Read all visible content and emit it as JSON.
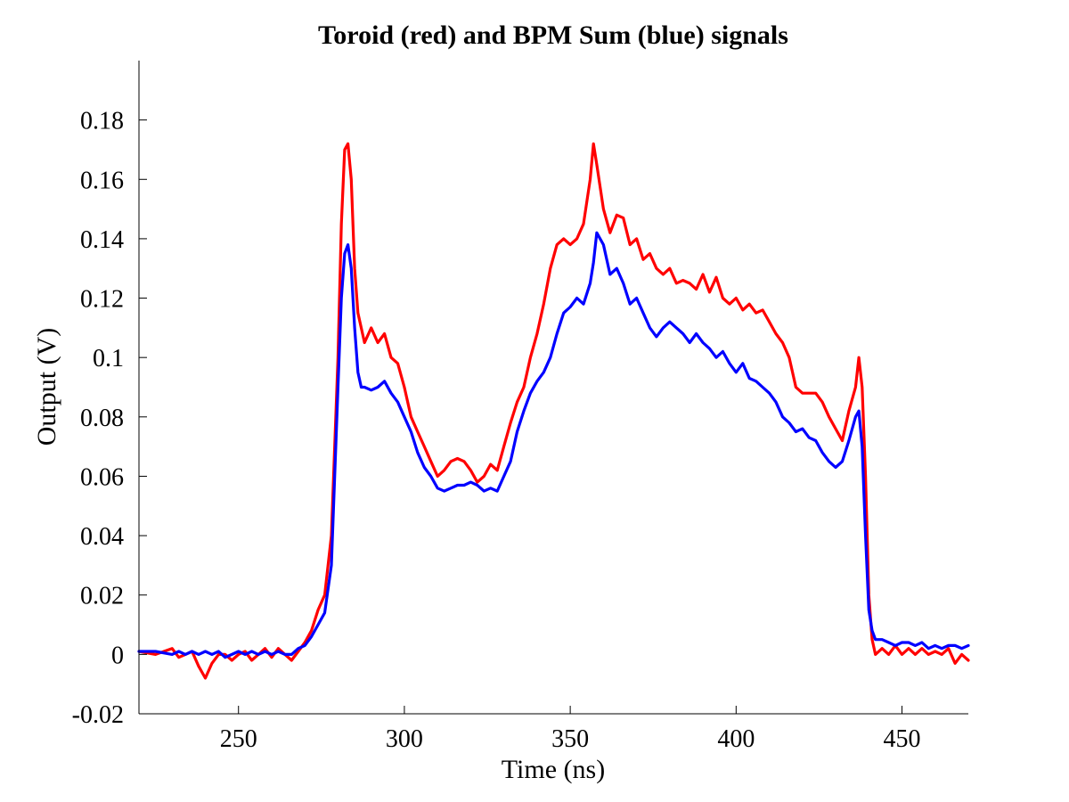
{
  "chart_data": {
    "type": "line",
    "title": "Toroid (red) and BPM Sum (blue) signals",
    "xlabel": "Time (ns)",
    "ylabel": "Output (V)",
    "xlim": [
      220,
      470
    ],
    "ylim": [
      -0.02,
      0.2
    ],
    "xticks": [
      250,
      300,
      350,
      400,
      450
    ],
    "xtick_labels": [
      "250",
      "300",
      "350",
      "400",
      "450"
    ],
    "yticks": [
      -0.02,
      0,
      0.02,
      0.04,
      0.06,
      0.08,
      0.1,
      0.12,
      0.14,
      0.16,
      0.18
    ],
    "ytick_labels": [
      "-0.02",
      "0",
      "0.02",
      "0.04",
      "0.06",
      "0.08",
      "0.1",
      "0.12",
      "0.14",
      "0.16",
      "0.18"
    ],
    "grid": false,
    "legend": "none",
    "series": [
      {
        "color": "#ff0000",
        "x": [
          220,
          225,
          230,
          232,
          234,
          236,
          238,
          240,
          242,
          244,
          246,
          248,
          250,
          252,
          254,
          256,
          258,
          260,
          262,
          264,
          266,
          268,
          270,
          272,
          274,
          276,
          278,
          280,
          281,
          282,
          283,
          284,
          285,
          286,
          287,
          288,
          290,
          292,
          294,
          296,
          298,
          300,
          302,
          304,
          306,
          308,
          310,
          312,
          314,
          316,
          318,
          320,
          322,
          324,
          326,
          328,
          330,
          332,
          334,
          336,
          338,
          340,
          342,
          344,
          346,
          348,
          350,
          352,
          354,
          356,
          357,
          358,
          360,
          362,
          364,
          366,
          368,
          370,
          372,
          374,
          376,
          378,
          380,
          382,
          384,
          386,
          388,
          390,
          392,
          394,
          396,
          398,
          400,
          402,
          404,
          406,
          408,
          410,
          412,
          414,
          416,
          418,
          420,
          422,
          424,
          426,
          428,
          430,
          432,
          434,
          436,
          437,
          438,
          439,
          440,
          441,
          442,
          444,
          446,
          448,
          450,
          452,
          454,
          456,
          458,
          460,
          462,
          464,
          466,
          468,
          470
        ],
        "y": [
          0.001,
          0.0,
          0.002,
          -0.001,
          0.0,
          0.001,
          -0.004,
          -0.008,
          -0.003,
          0.0,
          0.0,
          -0.002,
          0.0,
          0.001,
          -0.002,
          0.0,
          0.002,
          -0.001,
          0.002,
          0.0,
          -0.002,
          0.001,
          0.004,
          0.008,
          0.015,
          0.02,
          0.04,
          0.1,
          0.145,
          0.17,
          0.172,
          0.16,
          0.13,
          0.115,
          0.11,
          0.105,
          0.11,
          0.105,
          0.108,
          0.1,
          0.098,
          0.09,
          0.08,
          0.075,
          0.07,
          0.065,
          0.06,
          0.062,
          0.065,
          0.066,
          0.065,
          0.062,
          0.058,
          0.06,
          0.064,
          0.062,
          0.07,
          0.078,
          0.085,
          0.09,
          0.1,
          0.108,
          0.118,
          0.13,
          0.138,
          0.14,
          0.138,
          0.14,
          0.145,
          0.16,
          0.172,
          0.165,
          0.15,
          0.142,
          0.148,
          0.147,
          0.138,
          0.14,
          0.133,
          0.135,
          0.13,
          0.128,
          0.13,
          0.125,
          0.126,
          0.125,
          0.123,
          0.128,
          0.122,
          0.127,
          0.12,
          0.118,
          0.12,
          0.116,
          0.118,
          0.115,
          0.116,
          0.112,
          0.108,
          0.105,
          0.1,
          0.09,
          0.088,
          0.088,
          0.088,
          0.085,
          0.08,
          0.076,
          0.072,
          0.082,
          0.09,
          0.1,
          0.09,
          0.06,
          0.02,
          0.005,
          0.0,
          0.002,
          0.0,
          0.003,
          0.0,
          0.002,
          0.0,
          0.002,
          0.0,
          0.001,
          0.0,
          0.002,
          -0.003,
          0.0,
          -0.002
        ]
      },
      {
        "color": "#0000ff",
        "x": [
          220,
          225,
          230,
          232,
          234,
          236,
          238,
          240,
          242,
          244,
          246,
          248,
          250,
          252,
          254,
          256,
          258,
          260,
          262,
          264,
          266,
          268,
          270,
          272,
          274,
          276,
          278,
          280,
          281,
          282,
          283,
          284,
          285,
          286,
          287,
          288,
          290,
          292,
          294,
          296,
          298,
          300,
          302,
          304,
          306,
          308,
          310,
          312,
          314,
          316,
          318,
          320,
          322,
          324,
          326,
          328,
          330,
          332,
          334,
          336,
          338,
          340,
          342,
          344,
          346,
          348,
          350,
          352,
          354,
          356,
          357,
          358,
          360,
          362,
          364,
          366,
          368,
          370,
          372,
          374,
          376,
          378,
          380,
          382,
          384,
          386,
          388,
          390,
          392,
          394,
          396,
          398,
          400,
          402,
          404,
          406,
          408,
          410,
          412,
          414,
          416,
          418,
          420,
          422,
          424,
          426,
          428,
          430,
          432,
          434,
          436,
          437,
          438,
          439,
          440,
          441,
          442,
          444,
          446,
          448,
          450,
          452,
          454,
          456,
          458,
          460,
          462,
          464,
          466,
          468,
          470
        ],
        "y": [
          0.001,
          0.001,
          0.0,
          0.001,
          0.0,
          0.001,
          0.0,
          0.001,
          0.0,
          0.001,
          -0.001,
          0.0,
          0.001,
          0.0,
          0.001,
          0.0,
          0.001,
          0.0,
          0.001,
          0.0,
          0.0,
          0.002,
          0.003,
          0.006,
          0.01,
          0.014,
          0.03,
          0.09,
          0.12,
          0.135,
          0.138,
          0.13,
          0.11,
          0.095,
          0.09,
          0.09,
          0.089,
          0.09,
          0.092,
          0.088,
          0.085,
          0.08,
          0.075,
          0.068,
          0.063,
          0.06,
          0.056,
          0.055,
          0.056,
          0.057,
          0.057,
          0.058,
          0.057,
          0.055,
          0.056,
          0.055,
          0.06,
          0.065,
          0.075,
          0.082,
          0.088,
          0.092,
          0.095,
          0.1,
          0.108,
          0.115,
          0.117,
          0.12,
          0.118,
          0.125,
          0.132,
          0.142,
          0.138,
          0.128,
          0.13,
          0.125,
          0.118,
          0.12,
          0.115,
          0.11,
          0.107,
          0.11,
          0.112,
          0.11,
          0.108,
          0.105,
          0.108,
          0.105,
          0.103,
          0.1,
          0.102,
          0.098,
          0.095,
          0.098,
          0.093,
          0.092,
          0.09,
          0.088,
          0.085,
          0.08,
          0.078,
          0.075,
          0.076,
          0.073,
          0.072,
          0.068,
          0.065,
          0.063,
          0.065,
          0.072,
          0.08,
          0.082,
          0.07,
          0.04,
          0.015,
          0.008,
          0.005,
          0.005,
          0.004,
          0.003,
          0.004,
          0.004,
          0.003,
          0.004,
          0.002,
          0.003,
          0.002,
          0.003,
          0.003,
          0.002,
          0.003
        ]
      }
    ]
  }
}
